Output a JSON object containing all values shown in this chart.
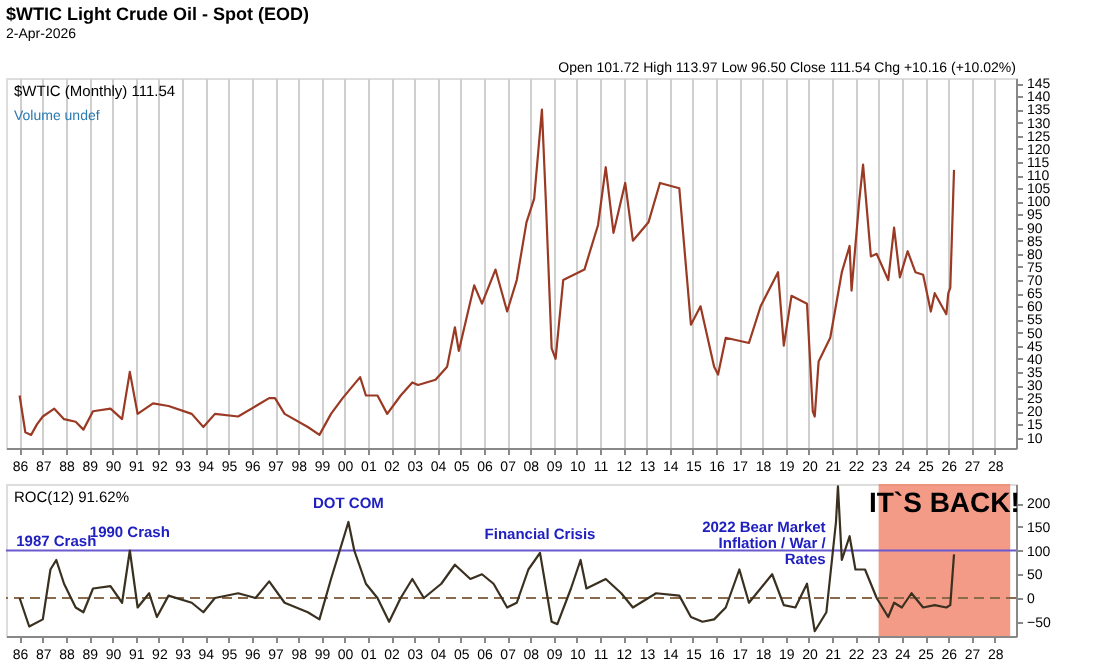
{
  "chart_data": [
    {
      "type": "line",
      "title": "$WTIC Light Crude Oil - Spot (EOD)",
      "subtitle": "2-Apr-2026",
      "grid": "x",
      "annotations": [
        "Volume undef",
        "Open 101.72 High 113.97 Low 96.50 Close 111.54 Chg +10.16 (+10.02%)"
      ],
      "xlim": [
        "1985-06",
        "2028-12"
      ],
      "xticks": [
        {
          "value": "1986-01",
          "label": "86"
        },
        {
          "value": "1987-01",
          "label": "87"
        },
        {
          "value": "1988-01",
          "label": "88"
        },
        {
          "value": "1989-01",
          "label": "89"
        },
        {
          "value": "1990-01",
          "label": "90"
        },
        {
          "value": "1991-01",
          "label": "91"
        },
        {
          "value": "1992-01",
          "label": "92"
        },
        {
          "value": "1993-01",
          "label": "93"
        },
        {
          "value": "1994-01",
          "label": "94"
        },
        {
          "value": "1995-01",
          "label": "95"
        },
        {
          "value": "1996-01",
          "label": "96"
        },
        {
          "value": "1997-01",
          "label": "97"
        },
        {
          "value": "1998-01",
          "label": "98"
        },
        {
          "value": "1999-01",
          "label": "99"
        },
        {
          "value": "2000-01",
          "label": "00"
        },
        {
          "value": "2001-01",
          "label": "01"
        },
        {
          "value": "2002-01",
          "label": "02"
        },
        {
          "value": "2003-01",
          "label": "03"
        },
        {
          "value": "2004-01",
          "label": "04"
        },
        {
          "value": "2005-01",
          "label": "05"
        },
        {
          "value": "2006-01",
          "label": "06"
        },
        {
          "value": "2007-01",
          "label": "07"
        },
        {
          "value": "2008-01",
          "label": "08"
        },
        {
          "value": "2009-01",
          "label": "09"
        },
        {
          "value": "2010-01",
          "label": "10"
        },
        {
          "value": "2011-01",
          "label": "11"
        },
        {
          "value": "2012-01",
          "label": "12"
        },
        {
          "value": "2013-01",
          "label": "13"
        },
        {
          "value": "2014-01",
          "label": "14"
        },
        {
          "value": "2015-01",
          "label": "15"
        },
        {
          "value": "2016-01",
          "label": "16"
        },
        {
          "value": "2017-01",
          "label": "17"
        },
        {
          "value": "2018-01",
          "label": "18"
        },
        {
          "value": "2019-01",
          "label": "19"
        },
        {
          "value": "2020-01",
          "label": "20"
        },
        {
          "value": "2021-01",
          "label": "21"
        },
        {
          "value": "2022-01",
          "label": "22"
        },
        {
          "value": "2023-01",
          "label": "23"
        },
        {
          "value": "2024-01",
          "label": "24"
        },
        {
          "value": "2025-01",
          "label": "25"
        },
        {
          "value": "2026-01",
          "label": "26"
        },
        {
          "value": "2027-01",
          "label": "27"
        },
        {
          "value": "2028-01",
          "label": "28"
        }
      ],
      "ylim": [
        6,
        147
      ],
      "yticks": [
        10,
        15,
        20,
        25,
        30,
        35,
        40,
        45,
        50,
        55,
        60,
        65,
        70,
        75,
        80,
        85,
        90,
        95,
        100,
        105,
        110,
        115,
        120,
        125,
        130,
        135,
        140,
        145
      ],
      "series": [
        {
          "name": "$WTIC (Monthly) 111.54",
          "color": "#9a3a24",
          "x": [
            "1986-01",
            "1986-04",
            "1986-07",
            "1986-10",
            "1987-01",
            "1987-07",
            "1987-12",
            "1988-06",
            "1988-10",
            "1989-03",
            "1989-12",
            "1990-06",
            "1990-10",
            "1990-12",
            "1991-02",
            "1991-10",
            "1992-06",
            "1993-06",
            "1993-12",
            "1994-06",
            "1995-06",
            "1996-10",
            "1997-01",
            "1997-06",
            "1998-06",
            "1998-12",
            "1999-06",
            "1999-12",
            "2000-09",
            "2000-12",
            "2001-06",
            "2001-11",
            "2002-06",
            "2002-12",
            "2003-03",
            "2003-12",
            "2004-06",
            "2004-10",
            "2004-12",
            "2005-08",
            "2005-12",
            "2006-07",
            "2007-01",
            "2007-06",
            "2007-11",
            "2008-03",
            "2008-07",
            "2008-09",
            "2008-12",
            "2009-02",
            "2009-06",
            "2010-05",
            "2010-12",
            "2011-04",
            "2011-08",
            "2012-02",
            "2012-06",
            "2013-02",
            "2013-08",
            "2014-06",
            "2014-12",
            "2015-05",
            "2015-12",
            "2016-02",
            "2016-06",
            "2017-06",
            "2017-12",
            "2018-09",
            "2018-12",
            "2019-04",
            "2019-12",
            "2020-03",
            "2020-04",
            "2020-06",
            "2020-12",
            "2021-06",
            "2021-10",
            "2021-11",
            "2022-03",
            "2022-05",
            "2022-09",
            "2022-12",
            "2023-06",
            "2023-09",
            "2023-12",
            "2024-04",
            "2024-08",
            "2024-12",
            "2025-04",
            "2025-06",
            "2025-12",
            "2026-01",
            "2026-02",
            "2026-04"
          ],
          "values": [
            26,
            12,
            11,
            15,
            18,
            21,
            17,
            16,
            13,
            20,
            21,
            17,
            35,
            27,
            19,
            23,
            22,
            19,
            14,
            19,
            18,
            25,
            25,
            19,
            14,
            11,
            19,
            25,
            33,
            26,
            26,
            19,
            26,
            31,
            30,
            32,
            37,
            52,
            43,
            68,
            61,
            74,
            58,
            70,
            92,
            101,
            135,
            100,
            44,
            40,
            70,
            74,
            91,
            113,
            88,
            107,
            85,
            92,
            107,
            105,
            53,
            60,
            37,
            34,
            48,
            46,
            60,
            73,
            45,
            64,
            61,
            20,
            18,
            39,
            48,
            73,
            83,
            66,
            100,
            114,
            79,
            80,
            70,
            90,
            71,
            81,
            73,
            72,
            58,
            65,
            57,
            65,
            67,
            112
          ]
        }
      ]
    },
    {
      "type": "line",
      "annotations": [
        {
          "text": "1987 Crash",
          "x": "1987-08",
          "y": 80
        },
        {
          "text": "1990 Crash",
          "x": "1990-10",
          "y": 100
        },
        {
          "text": "DOT COM",
          "x": "2000-03",
          "y": 160
        },
        {
          "text": "Financial Crisis",
          "x": "2008-06",
          "y": 95
        },
        {
          "text": "2022 Bear Market\nInflation / War /\nRates",
          "x": "2021-10",
          "y": 130
        }
      ],
      "xlim": [
        "1985-06",
        "2028-12"
      ],
      "xticks": [
        {
          "value": "1986-01",
          "label": "86"
        },
        {
          "value": "1987-01",
          "label": "87"
        },
        {
          "value": "1988-01",
          "label": "88"
        },
        {
          "value": "1989-01",
          "label": "89"
        },
        {
          "value": "1990-01",
          "label": "90"
        },
        {
          "value": "1991-01",
          "label": "91"
        },
        {
          "value": "1992-01",
          "label": "92"
        },
        {
          "value": "1993-01",
          "label": "93"
        },
        {
          "value": "1994-01",
          "label": "94"
        },
        {
          "value": "1995-01",
          "label": "95"
        },
        {
          "value": "1996-01",
          "label": "96"
        },
        {
          "value": "1997-01",
          "label": "97"
        },
        {
          "value": "1998-01",
          "label": "98"
        },
        {
          "value": "1999-01",
          "label": "99"
        },
        {
          "value": "2000-01",
          "label": "00"
        },
        {
          "value": "2001-01",
          "label": "01"
        },
        {
          "value": "2002-01",
          "label": "02"
        },
        {
          "value": "2003-01",
          "label": "03"
        },
        {
          "value": "2004-01",
          "label": "04"
        },
        {
          "value": "2005-01",
          "label": "05"
        },
        {
          "value": "2006-01",
          "label": "06"
        },
        {
          "value": "2007-01",
          "label": "07"
        },
        {
          "value": "2008-01",
          "label": "08"
        },
        {
          "value": "2009-01",
          "label": "09"
        },
        {
          "value": "2010-01",
          "label": "10"
        },
        {
          "value": "2011-01",
          "label": "11"
        },
        {
          "value": "2012-01",
          "label": "12"
        },
        {
          "value": "2013-01",
          "label": "13"
        },
        {
          "value": "2014-01",
          "label": "14"
        },
        {
          "value": "2015-01",
          "label": "15"
        },
        {
          "value": "2016-01",
          "label": "16"
        },
        {
          "value": "2017-01",
          "label": "17"
        },
        {
          "value": "2018-01",
          "label": "18"
        },
        {
          "value": "2019-01",
          "label": "19"
        },
        {
          "value": "2020-01",
          "label": "20"
        },
        {
          "value": "2021-01",
          "label": "21"
        },
        {
          "value": "2022-01",
          "label": "22"
        },
        {
          "value": "2023-01",
          "label": "23"
        },
        {
          "value": "2024-01",
          "label": "24"
        },
        {
          "value": "2025-01",
          "label": "25"
        },
        {
          "value": "2026-01",
          "label": "26"
        },
        {
          "value": "2027-01",
          "label": "27"
        },
        {
          "value": "2028-01",
          "label": "28"
        }
      ],
      "ylim": [
        -80,
        240
      ],
      "yticks": [
        -50,
        0,
        50,
        100,
        150,
        200
      ],
      "ref_lines": [
        {
          "axis": "y",
          "value": 100,
          "color": "#6a5acd",
          "line_style": "solid"
        },
        {
          "axis": "y",
          "value": 0,
          "color": "#8a6a4a",
          "line_style": "dashed"
        }
      ],
      "bands": [
        {
          "axis": "x",
          "from": "2023-01",
          "to": "2028-09",
          "label": "IT`S BACK!",
          "color": "#f07a60"
        }
      ],
      "series": [
        {
          "name": "ROC(12) 91.62%",
          "color": "#3a3020",
          "x": [
            "1986-01",
            "1986-06",
            "1987-01",
            "1987-05",
            "1987-08",
            "1987-12",
            "1988-06",
            "1988-10",
            "1989-03",
            "1989-12",
            "1990-06",
            "1990-10",
            "1991-02",
            "1991-08",
            "1991-12",
            "1992-06",
            "1993-06",
            "1993-12",
            "1994-06",
            "1995-06",
            "1996-03",
            "1996-10",
            "1997-06",
            "1998-06",
            "1998-12",
            "1999-06",
            "1999-12",
            "2000-03",
            "2000-06",
            "2000-12",
            "2001-06",
            "2001-12",
            "2002-06",
            "2002-12",
            "2003-06",
            "2004-03",
            "2004-10",
            "2005-06",
            "2005-12",
            "2006-06",
            "2007-01",
            "2007-06",
            "2007-12",
            "2008-06",
            "2008-12",
            "2009-03",
            "2009-10",
            "2010-03",
            "2010-06",
            "2011-04",
            "2011-12",
            "2012-06",
            "2013-06",
            "2014-06",
            "2014-12",
            "2015-06",
            "2015-12",
            "2016-06",
            "2017-01",
            "2017-06",
            "2018-06",
            "2018-12",
            "2019-06",
            "2019-12",
            "2020-04",
            "2020-10",
            "2021-03",
            "2021-04",
            "2021-06",
            "2021-10",
            "2022-01",
            "2022-06",
            "2022-12",
            "2023-06",
            "2023-09",
            "2024-01",
            "2024-06",
            "2024-12",
            "2025-06",
            "2025-12",
            "2026-02",
            "2026-04"
          ],
          "values": [
            0,
            -60,
            -45,
            60,
            80,
            30,
            -20,
            -30,
            20,
            25,
            -10,
            100,
            -20,
            10,
            -40,
            5,
            -10,
            -30,
            0,
            10,
            0,
            35,
            -10,
            -30,
            -45,
            40,
            120,
            160,
            100,
            30,
            0,
            -50,
            0,
            40,
            0,
            30,
            70,
            40,
            50,
            30,
            -20,
            -10,
            60,
            95,
            -50,
            -55,
            20,
            80,
            20,
            40,
            10,
            -20,
            10,
            5,
            -40,
            -50,
            -45,
            -20,
            60,
            -10,
            50,
            -15,
            -20,
            30,
            -70,
            -30,
            160,
            235,
            80,
            130,
            60,
            60,
            0,
            -40,
            -10,
            -20,
            10,
            -20,
            -15,
            -20,
            -15,
            92
          ]
        }
      ]
    }
  ]
}
